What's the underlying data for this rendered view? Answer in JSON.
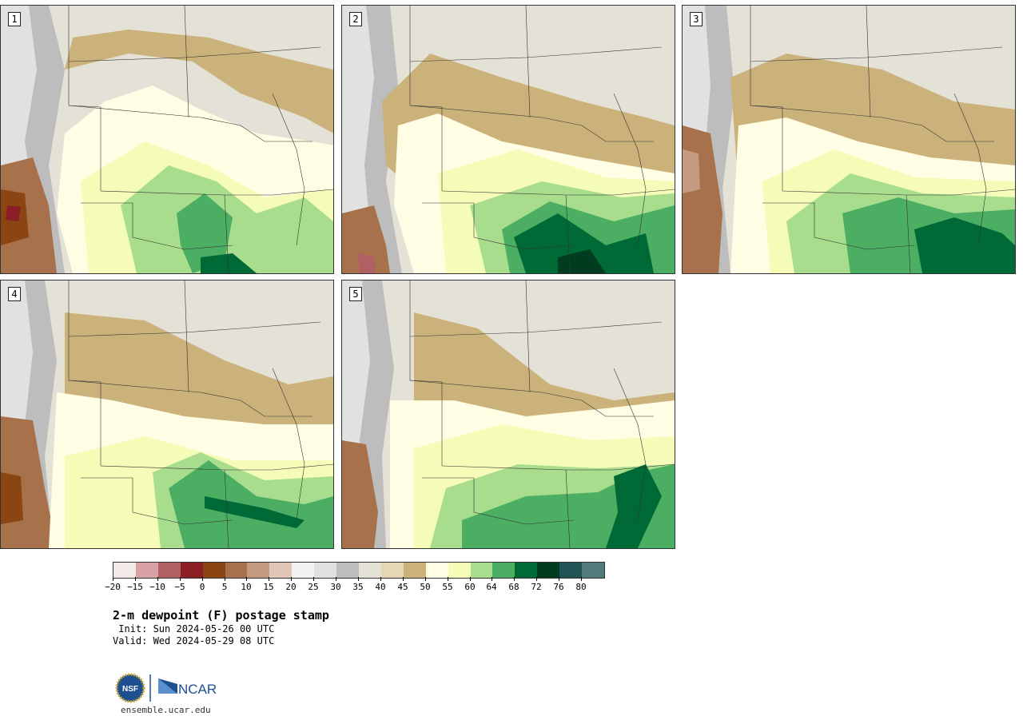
{
  "panels": [
    {
      "label": "1"
    },
    {
      "label": "2"
    },
    {
      "label": "3"
    },
    {
      "label": "4"
    },
    {
      "label": "5"
    }
  ],
  "legend": {
    "tick_labels": [
      "−20",
      "−15",
      "−10",
      "−5",
      "0",
      "5",
      "10",
      "15",
      "20",
      "25",
      "30",
      "35",
      "40",
      "45",
      "50",
      "55",
      "60",
      "64",
      "68",
      "72",
      "76",
      "80"
    ],
    "colors": [
      "#f3e9e7",
      "#d8a2a4",
      "#b05f63",
      "#8a1e25",
      "#8a4513",
      "#a6714b",
      "#c49a80",
      "#e2c7b8",
      "#f2f2f2",
      "#e1e1e1",
      "#bdbdbd",
      "#e4e2d6",
      "#e7d6b2",
      "#cbb27a",
      "#fffde3",
      "#f5fcb8",
      "#a8dd8e",
      "#4bae62",
      "#006a36",
      "#003d20",
      "#1f5354",
      "#527c7c"
    ]
  },
  "title": "2-m dewpoint (F) postage stamp",
  "init": " Init: Sun 2024-05-26 00 UTC",
  "valid": "Valid: Wed 2024-05-29 08 UTC",
  "logos": {
    "nsf": "NSF",
    "ncar": "NCAR"
  },
  "url": "ensemble.ucar.edu"
}
